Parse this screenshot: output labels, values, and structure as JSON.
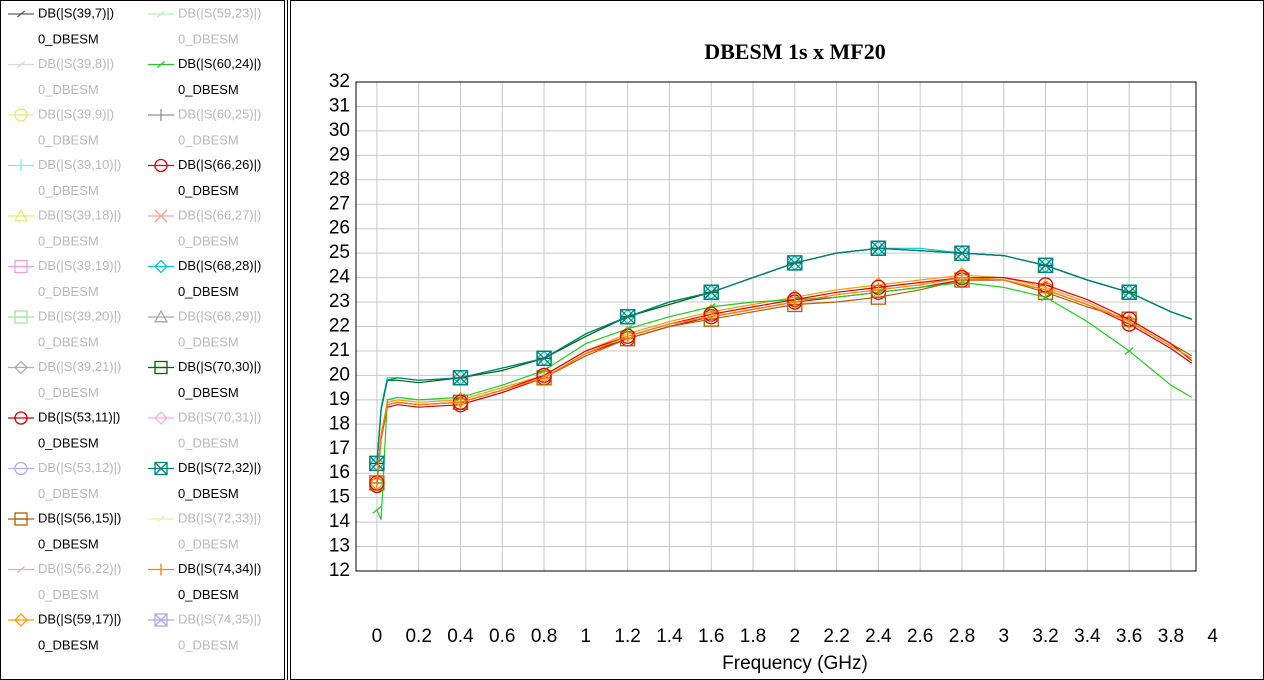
{
  "chart_data": {
    "type": "line",
    "title": "DBESM 1s x MF20",
    "x_label": "Frequency (GHz)",
    "xlim": [
      -0.1,
      3.92
    ],
    "xticks": [
      0,
      0.2,
      0.4,
      0.6,
      0.8,
      1,
      1.2,
      1.4,
      1.6,
      1.8,
      2,
      2.2,
      2.4,
      2.6,
      2.8,
      3,
      3.2,
      3.4,
      3.6,
      3.8,
      4
    ],
    "ylim": [
      12,
      32
    ],
    "yticks": [
      12,
      13,
      14,
      15,
      16,
      17,
      18,
      19,
      20,
      21,
      22,
      23,
      24,
      25,
      26,
      27,
      28,
      29,
      30,
      31,
      32
    ],
    "grid": true,
    "marker_step": 0.4,
    "x": [
      0,
      0.02,
      0.05,
      0.1,
      0.2,
      0.4,
      0.6,
      0.8,
      1.0,
      1.2,
      1.4,
      1.6,
      1.8,
      2.0,
      2.2,
      2.4,
      2.6,
      2.8,
      3.0,
      3.2,
      3.4,
      3.6,
      3.8,
      3.9
    ],
    "series": [
      {
        "name": "DB(|S(39,7)|)",
        "source": "0_DBESM",
        "color": "#606060",
        "marker": "slash",
        "visible": true,
        "values": [
          16.4,
          18.6,
          19.8,
          19.9,
          19.8,
          19.9,
          20.3,
          20.7,
          21.7,
          22.4,
          23.0,
          23.4,
          24.0,
          24.6,
          25.0,
          25.2,
          25.1,
          25.0,
          24.9,
          24.5,
          23.9,
          23.4,
          22.6,
          22.3
        ]
      },
      {
        "name": "DB(|S(39,8)|)",
        "source": "0_DBESM",
        "color": "#d8d8d8",
        "marker": "slash",
        "visible": false
      },
      {
        "name": "DB(|S(39,9)|)",
        "source": "0_DBESM",
        "color": "#f2e27a",
        "marker": "circle",
        "visible": false
      },
      {
        "name": "DB(|S(39,10)|)",
        "source": "0_DBESM",
        "color": "#7fe8f0",
        "marker": "plus",
        "visible": false
      },
      {
        "name": "DB(|S(39,18)|)",
        "source": "0_DBESM",
        "color": "#f2e27a",
        "marker": "triangle",
        "visible": false
      },
      {
        "name": "DB(|S(39,19)|)",
        "source": "0_DBESM",
        "color": "#f0a0d8",
        "marker": "square",
        "visible": false
      },
      {
        "name": "DB(|S(39,20)|)",
        "source": "0_DBESM",
        "color": "#9ee89e",
        "marker": "square",
        "visible": false
      },
      {
        "name": "DB(|S(39,21)|)",
        "source": "0_DBESM",
        "color": "#b0b0b0",
        "marker": "diamond",
        "visible": false
      },
      {
        "name": "DB(|S(53,11)|)",
        "source": "0_DBESM",
        "color": "#cc0000",
        "marker": "circle",
        "visible": true,
        "values": [
          15.5,
          17.4,
          18.7,
          18.8,
          18.7,
          18.8,
          19.3,
          19.9,
          20.9,
          21.5,
          22.0,
          22.4,
          22.7,
          23.0,
          23.2,
          23.4,
          23.6,
          23.9,
          23.9,
          23.5,
          22.9,
          22.1,
          21.1,
          20.5
        ]
      },
      {
        "name": "DB(|S(53,12)|)",
        "source": "0_DBESM",
        "color": "#b0b0f0",
        "marker": "circle",
        "visible": false
      },
      {
        "name": "DB(|S(56,15)|)",
        "source": "0_DBESM",
        "color": "#b06000",
        "marker": "square",
        "visible": true,
        "values": [
          15.6,
          17.5,
          18.8,
          18.9,
          18.8,
          18.9,
          19.4,
          19.9,
          20.8,
          21.5,
          22.0,
          22.3,
          22.6,
          22.9,
          23.0,
          23.2,
          23.5,
          23.9,
          23.9,
          23.4,
          22.8,
          22.3,
          21.3,
          20.8
        ]
      },
      {
        "name": "DB(|S(56,22)|)",
        "source": "0_DBESM",
        "color": "#f4a8b8",
        "marker": "slash",
        "visible": false
      },
      {
        "name": "DB(|S(59,17)|)",
        "source": "0_DBESM",
        "color": "#ff9900",
        "marker": "diamond",
        "visible": true,
        "values": [
          15.6,
          17.6,
          18.9,
          19.0,
          18.9,
          19.0,
          19.5,
          20.0,
          21.0,
          21.7,
          22.2,
          22.6,
          22.9,
          23.2,
          23.5,
          23.7,
          23.9,
          24.1,
          24.0,
          23.6,
          23.0,
          22.2,
          21.2,
          20.7
        ]
      },
      {
        "name": "DB(|S(59,23)|)",
        "source": "0_DBESM",
        "color": "#b8f0b8",
        "marker": "slash",
        "visible": false
      },
      {
        "name": "DB(|S(60,24)|)",
        "source": "0_DBESM",
        "color": "#22cc22",
        "marker": "slash",
        "visible": true,
        "values": [
          14.5,
          14.1,
          19.0,
          19.1,
          19.0,
          19.1,
          19.6,
          20.2,
          21.3,
          21.9,
          22.4,
          22.8,
          23.0,
          23.1,
          23.2,
          23.4,
          23.6,
          23.8,
          23.6,
          23.2,
          22.2,
          21.0,
          19.6,
          19.1
        ]
      },
      {
        "name": "DB(|S(60,25)|)",
        "source": "0_DBESM",
        "color": "#909090",
        "marker": "plus",
        "visible": false
      },
      {
        "name": "DB(|S(66,26)|)",
        "source": "0_DBESM",
        "color": "#e00000",
        "marker": "circle",
        "visible": true,
        "values": [
          15.6,
          17.5,
          18.8,
          18.9,
          18.8,
          18.9,
          19.4,
          20.0,
          21.0,
          21.6,
          22.1,
          22.5,
          22.8,
          23.1,
          23.4,
          23.6,
          23.8,
          24.0,
          24.0,
          23.7,
          23.1,
          22.3,
          21.3,
          20.6
        ]
      },
      {
        "name": "DB(|S(66,27)|)",
        "source": "0_DBESM",
        "color": "#f4a0a0",
        "marker": "x",
        "visible": false
      },
      {
        "name": "DB(|S(68,28)|)",
        "source": "0_DBESM",
        "color": "#00cccc",
        "marker": "diamond",
        "visible": true,
        "values": [
          16.4,
          18.7,
          19.9,
          19.9,
          19.8,
          19.9,
          20.3,
          20.7,
          21.7,
          22.4,
          23.0,
          23.4,
          24.0,
          24.6,
          25.0,
          25.2,
          25.2,
          25.0,
          24.9,
          24.5,
          23.9,
          23.4,
          22.6,
          22.3
        ]
      },
      {
        "name": "DB(|S(68,29)|)",
        "source": "0_DBESM",
        "color": "#a8a8a8",
        "marker": "triangle",
        "visible": false
      },
      {
        "name": "DB(|S(70,30)|)",
        "source": "0_DBESM",
        "color": "#006600",
        "marker": "square",
        "visible": true,
        "values": [
          16.4,
          18.6,
          19.8,
          19.8,
          19.7,
          19.9,
          20.2,
          20.7,
          21.6,
          22.4,
          22.9,
          23.4,
          24.0,
          24.6,
          25.0,
          25.2,
          25.1,
          25.0,
          24.9,
          24.5,
          23.9,
          23.4,
          22.6,
          22.3
        ]
      },
      {
        "name": "DB(|S(70,31)|)",
        "source": "0_DBESM",
        "color": "#f0b0e8",
        "marker": "diamond",
        "visible": false
      },
      {
        "name": "DB(|S(72,32)|)",
        "source": "0_DBESM",
        "color": "#008080",
        "marker": "hourglass",
        "visible": true,
        "values": [
          16.4,
          18.6,
          19.8,
          19.9,
          19.8,
          19.9,
          20.3,
          20.7,
          21.7,
          22.4,
          23.0,
          23.4,
          24.0,
          24.6,
          25.0,
          25.2,
          25.1,
          25.0,
          24.9,
          24.5,
          23.9,
          23.4,
          22.6,
          22.3
        ]
      },
      {
        "name": "DB(|S(72,33)|)",
        "source": "0_DBESM",
        "color": "#f4ec9c",
        "marker": "slash",
        "visible": false
      },
      {
        "name": "DB(|S(74,34)|)",
        "source": "0_DBESM",
        "color": "#ff8000",
        "marker": "plus",
        "visible": true,
        "values": [
          15.6,
          17.5,
          18.8,
          18.9,
          18.8,
          18.9,
          19.4,
          19.9,
          20.9,
          21.6,
          22.1,
          22.4,
          22.7,
          23.0,
          23.3,
          23.5,
          23.7,
          24.0,
          23.9,
          23.5,
          22.9,
          22.2,
          21.2,
          20.7
        ]
      },
      {
        "name": "DB(|S(74,35)|)",
        "source": "0_DBESM",
        "color": "#a8a8ec",
        "marker": "hourglass",
        "visible": false
      }
    ]
  }
}
